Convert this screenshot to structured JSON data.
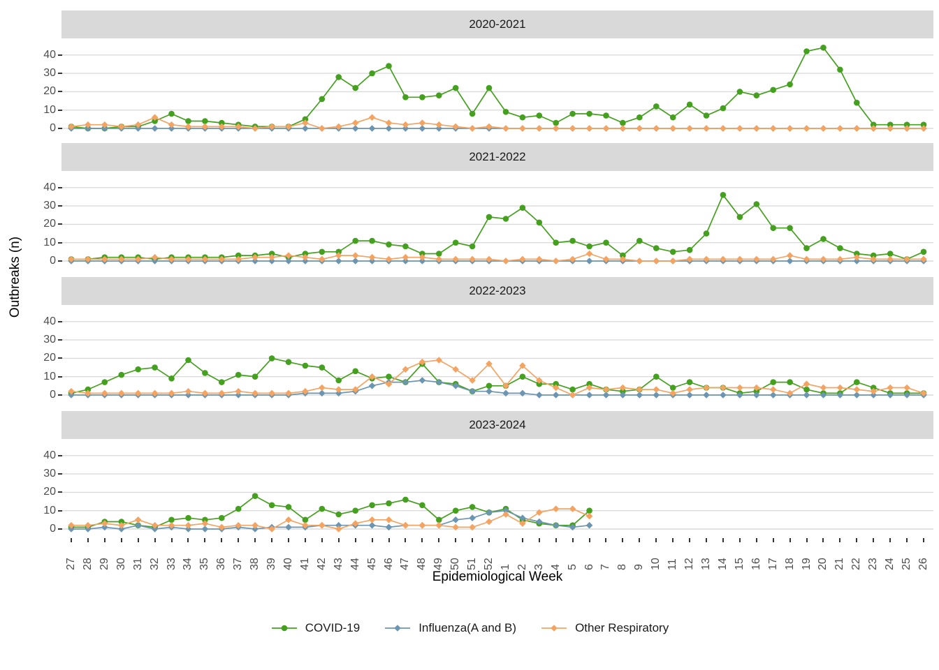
{
  "axes": {
    "y_label": "Outbreaks (n)",
    "x_label": "Epidemiological Week"
  },
  "legend": {
    "items": [
      {
        "label": "COVID-19",
        "color": "#44A01E",
        "marker": "circle"
      },
      {
        "label": "Influenza(A and B)",
        "color": "#6C95B1",
        "marker": "diamond"
      },
      {
        "label": "Other Respiratory",
        "color": "#F4A462",
        "marker": "diamond"
      }
    ]
  },
  "style": {
    "strip_bg": "#d9d9d9",
    "grid_color": "#dbdbdb",
    "tick_color": "#333333",
    "axis_text_color": "#4d4d4d"
  },
  "chart_data": {
    "type": "line",
    "xlabel": "Epidemiological Week",
    "ylabel": "Outbreaks (n)",
    "x": [
      "27",
      "28",
      "29",
      "30",
      "31",
      "32",
      "33",
      "34",
      "35",
      "36",
      "37",
      "38",
      "39",
      "40",
      "41",
      "42",
      "43",
      "44",
      "45",
      "46",
      "47",
      "48",
      "49",
      "50",
      "51",
      "52",
      "1",
      "2",
      "3",
      "4",
      "5",
      "6",
      "7",
      "8",
      "9",
      "10",
      "11",
      "12",
      "13",
      "14",
      "15",
      "16",
      "17",
      "18",
      "19",
      "20",
      "21",
      "22",
      "23",
      "24",
      "25",
      "26"
    ],
    "yticks": [
      0,
      10,
      20,
      30,
      40
    ],
    "ylim": [
      0,
      47
    ],
    "grid": "horizontal major gridlines only",
    "legend_position": "bottom",
    "facets": [
      {
        "label": "2020-2021",
        "series": [
          {
            "name": "COVID-19",
            "values": [
              1,
              0,
              0,
              1,
              1,
              4,
              8,
              4,
              4,
              3,
              2,
              1,
              1,
              1,
              5,
              16,
              28,
              22,
              30,
              34,
              17,
              17,
              18,
              22,
              8,
              22,
              9,
              6,
              7,
              3,
              8,
              8,
              7,
              3,
              6,
              12,
              6,
              13,
              7,
              11,
              20,
              18,
              21,
              24,
              42,
              44,
              32,
              14,
              2,
              2,
              2,
              2
            ]
          },
          {
            "name": "Influenza(A and B)",
            "values": [
              0,
              0,
              0,
              0,
              0,
              0,
              0,
              0,
              0,
              0,
              0,
              0,
              0,
              0,
              0,
              0,
              0,
              0,
              0,
              0,
              0,
              0,
              0,
              0,
              0,
              0,
              0,
              0,
              0,
              0,
              0,
              0,
              0,
              0,
              0,
              0,
              0,
              0,
              0,
              0,
              0,
              0,
              0,
              0,
              0,
              0,
              0,
              0,
              0,
              0,
              0,
              0
            ]
          },
          {
            "name": "Other Respiratory",
            "values": [
              1,
              2,
              2,
              1,
              2,
              6,
              2,
              1,
              1,
              1,
              1,
              0,
              1,
              1,
              3,
              0,
              1,
              3,
              6,
              3,
              2,
              3,
              2,
              1,
              0,
              1,
              0,
              0,
              0,
              0,
              0,
              0,
              0,
              0,
              0,
              0,
              0,
              0,
              0,
              0,
              0,
              0,
              0,
              0,
              0,
              0,
              0,
              0,
              0,
              0,
              0,
              0
            ]
          }
        ]
      },
      {
        "label": "2021-2022",
        "series": [
          {
            "name": "COVID-19",
            "values": [
              1,
              1,
              2,
              2,
              2,
              1,
              2,
              2,
              2,
              2,
              3,
              3,
              4,
              2,
              4,
              5,
              5,
              11,
              11,
              9,
              8,
              4,
              4,
              10,
              8,
              24,
              23,
              29,
              21,
              10,
              11,
              8,
              10,
              3,
              11,
              7,
              5,
              6,
              15,
              36,
              24,
              31,
              18,
              18,
              7,
              12,
              7,
              4,
              3,
              4,
              1,
              5
            ]
          },
          {
            "name": "Influenza(A and B)",
            "values": [
              0,
              0,
              0,
              0,
              0,
              0,
              0,
              0,
              0,
              0,
              0,
              0,
              0,
              0,
              0,
              0,
              0,
              0,
              0,
              0,
              0,
              0,
              0,
              0,
              0,
              0,
              0,
              0,
              0,
              0,
              0,
              0,
              0,
              0,
              0,
              0,
              0,
              0,
              0,
              0,
              0,
              0,
              0,
              0,
              0,
              0,
              0,
              0,
              0,
              0,
              0,
              0
            ]
          },
          {
            "name": "Other Respiratory",
            "values": [
              1,
              1,
              1,
              1,
              1,
              2,
              1,
              1,
              1,
              1,
              1,
              2,
              2,
              3,
              2,
              1,
              3,
              3,
              2,
              1,
              2,
              2,
              1,
              1,
              1,
              1,
              0,
              1,
              1,
              0,
              1,
              4,
              1,
              1,
              0,
              0,
              0,
              1,
              1,
              1,
              1,
              1,
              1,
              3,
              1,
              1,
              1,
              2,
              1,
              1,
              1,
              1
            ]
          }
        ]
      },
      {
        "label": "2022-2023",
        "series": [
          {
            "name": "COVID-19",
            "values": [
              1,
              3,
              7,
              11,
              14,
              15,
              9,
              19,
              12,
              7,
              11,
              10,
              20,
              18,
              16,
              15,
              8,
              13,
              9,
              10,
              7,
              17,
              7,
              6,
              2,
              5,
              5,
              10,
              6,
              6,
              3,
              6,
              3,
              2,
              3,
              10,
              4,
              7,
              4,
              4,
              1,
              2,
              7,
              7,
              3,
              1,
              1,
              7,
              4,
              1,
              1,
              1
            ]
          },
          {
            "name": "Influenza(A and B)",
            "values": [
              0,
              0,
              0,
              0,
              0,
              0,
              0,
              0,
              0,
              0,
              0,
              0,
              0,
              0,
              1,
              1,
              1,
              2,
              5,
              7,
              7,
              8,
              7,
              5,
              2,
              2,
              1,
              1,
              0,
              0,
              0,
              0,
              0,
              0,
              0,
              0,
              0,
              0,
              0,
              0,
              0,
              0,
              0,
              0,
              0,
              0,
              0,
              0,
              0,
              0,
              0,
              0
            ]
          },
          {
            "name": "Other Respiratory",
            "values": [
              2,
              1,
              1,
              1,
              1,
              1,
              1,
              2,
              1,
              1,
              2,
              1,
              1,
              1,
              2,
              4,
              3,
              3,
              10,
              6,
              14,
              18,
              19,
              14,
              8,
              17,
              5,
              16,
              8,
              4,
              0,
              4,
              3,
              4,
              3,
              3,
              1,
              3,
              4,
              4,
              4,
              4,
              3,
              1,
              6,
              4,
              4,
              3,
              2,
              4,
              4,
              1
            ]
          }
        ]
      },
      {
        "label": "2023-2024",
        "series": [
          {
            "name": "COVID-19",
            "values": [
              1,
              1,
              4,
              4,
              2,
              1,
              5,
              6,
              5,
              6,
              11,
              18,
              13,
              12,
              5,
              11,
              8,
              10,
              13,
              14,
              16,
              13,
              5,
              10,
              12,
              9,
              11,
              5,
              3,
              2,
              2,
              10
            ]
          },
          {
            "name": "Influenza(A and B)",
            "values": [
              0,
              0,
              1,
              0,
              2,
              0,
              1,
              0,
              0,
              0,
              1,
              0,
              1,
              1,
              1,
              2,
              2,
              2,
              2,
              1,
              2,
              2,
              2,
              5,
              6,
              9,
              10,
              6,
              4,
              2,
              1,
              2
            ]
          },
          {
            "name": "Other Respiratory",
            "values": [
              2,
              2,
              3,
              2,
              5,
              2,
              2,
              2,
              3,
              1,
              2,
              2,
              0,
              5,
              2,
              2,
              0,
              3,
              5,
              5,
              2,
              2,
              2,
              1,
              1,
              4,
              8,
              3,
              9,
              11,
              11,
              7
            ]
          }
        ]
      }
    ]
  }
}
